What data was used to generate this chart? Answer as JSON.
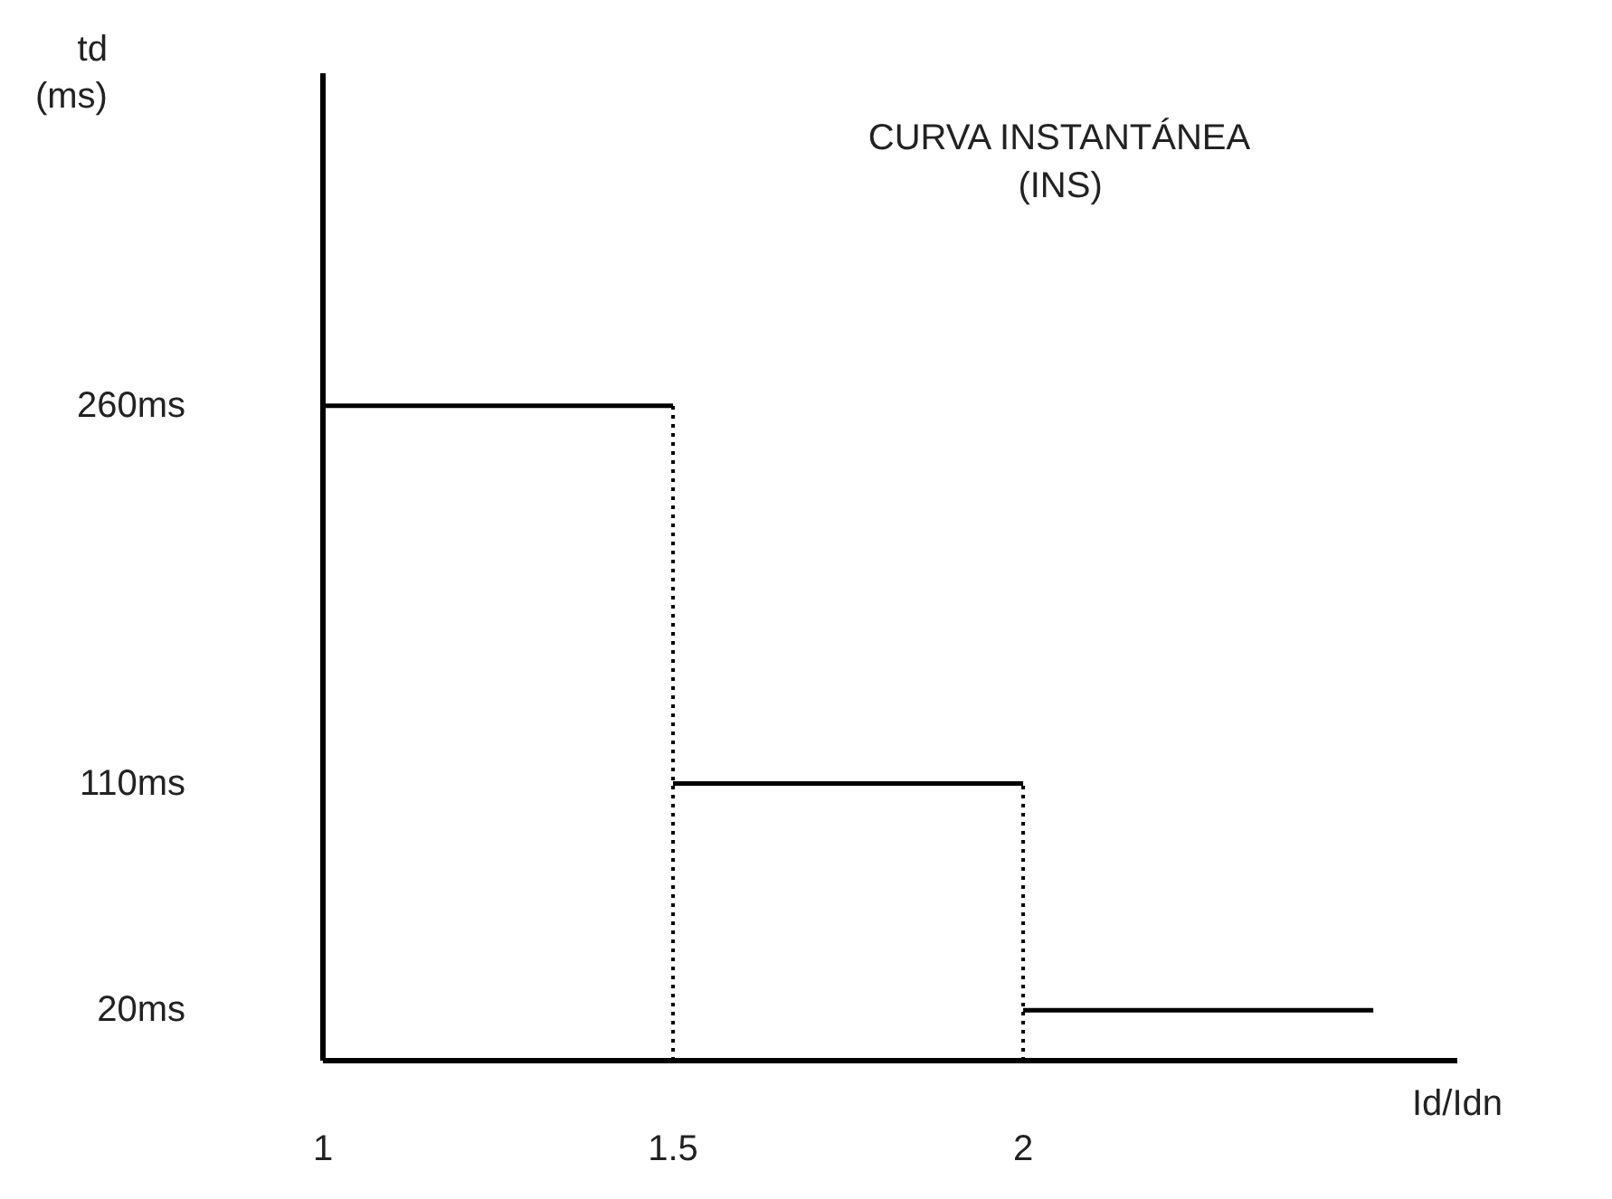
{
  "chart_data": {
    "type": "step",
    "title": "CURVA INSTANTÁNEA\n(INS)",
    "xlabel": "Id/Idn",
    "ylabel": "td\n(ms)",
    "x": [
      1,
      1.5,
      2,
      2.5
    ],
    "series": [
      {
        "color": "#000000",
        "values": [
          260,
          110,
          20,
          20
        ]
      }
    ],
    "xlim": [
      1,
      2.62
    ],
    "xticks": [
      1,
      1.5,
      2
    ],
    "ylim": [
      0,
      392
    ],
    "yticks": [
      {
        "value": 260,
        "label": "260ms"
      },
      {
        "value": 110,
        "label": "110ms"
      },
      {
        "value": 20,
        "label": "20ms"
      }
    ],
    "ref_lines": [
      {
        "axis": "x",
        "value": 1.5,
        "line_style": "dotted",
        "color": "#000000"
      },
      {
        "axis": "x",
        "value": 2,
        "line_style": "dotted",
        "color": "#000000"
      }
    ],
    "grid": false,
    "line_style": "solid"
  }
}
